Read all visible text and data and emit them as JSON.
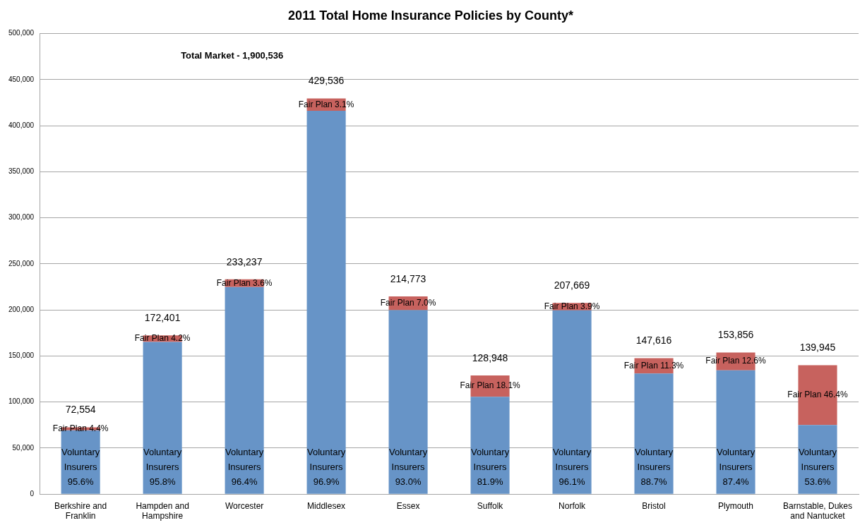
{
  "chart_data": {
    "type": "bar",
    "title": "2011 Total Home Insurance Policies by County*",
    "categories": [
      "Berkshire and Franklin",
      "Hampden and Hampshire",
      "Worcester",
      "Middlesex",
      "Essex",
      "Suffolk",
      "Norfolk",
      "Bristol",
      "Plymouth",
      "Barnstable, Dukes and Nantucket"
    ],
    "stacked": true,
    "series": [
      {
        "color": "#6794c7",
        "values": [
          69354,
          165201,
          224837,
          416236,
          199773,
          105648,
          199569,
          130916,
          134456,
          75045
        ],
        "value_labels": [
          "Voluntary\nInsurers\n95.6%",
          "Voluntary\nInsurers\n95.8%",
          "Voluntary\nInsurers\n96.4%",
          "Voluntary\nInsurers\n96.9%",
          "Voluntary\nInsurers\n93.0%",
          "Voluntary\nInsurers\n81.9%",
          "Voluntary\nInsurers\n96.1%",
          "Voluntary\nInsurers\n88.7%",
          "Voluntary\nInsurers\n87.4%",
          "Voluntary\nInsurers\n53.6%"
        ]
      },
      {
        "color": "#c7625e",
        "values": [
          3200,
          7200,
          8400,
          13300,
          15000,
          23300,
          8100,
          16700,
          19400,
          64900
        ],
        "value_labels": [
          "Fair Plan 4.4%",
          "Fair Plan 4.2%",
          "Fair Plan 3.6%",
          "Fair Plan 3.1%",
          "Fair Plan 7.0%",
          "Fair Plan 18.1%",
          "Fair Plan 3.9%",
          "Fair Plan 11.3%",
          "Fair Plan 12.6%",
          "Fair Plan 46.4%"
        ]
      }
    ],
    "totals": [
      "72,554",
      "172,401",
      "233,237",
      "429,536",
      "214,773",
      "128,948",
      "207,669",
      "147,616",
      "153,856",
      "139,945"
    ],
    "annotations": [
      "Total Market - 1,900,536"
    ],
    "ylim": [
      0,
      500000
    ],
    "yticks": [
      0,
      {
        "value": 50000,
        "label": "50,000"
      },
      {
        "value": 100000,
        "label": "100,000"
      },
      {
        "value": 150000,
        "label": "150,000"
      },
      {
        "value": 200000,
        "label": "200,000"
      },
      {
        "value": 250000,
        "label": "250,000"
      },
      {
        "value": 300000,
        "label": "300,000"
      },
      {
        "value": 350000,
        "label": "350,000"
      },
      {
        "value": 400000,
        "label": "400,000"
      },
      {
        "value": 450000,
        "label": "450,000"
      },
      {
        "value": 500000,
        "label": "500,000"
      }
    ],
    "grid": "y",
    "legend": false
  }
}
